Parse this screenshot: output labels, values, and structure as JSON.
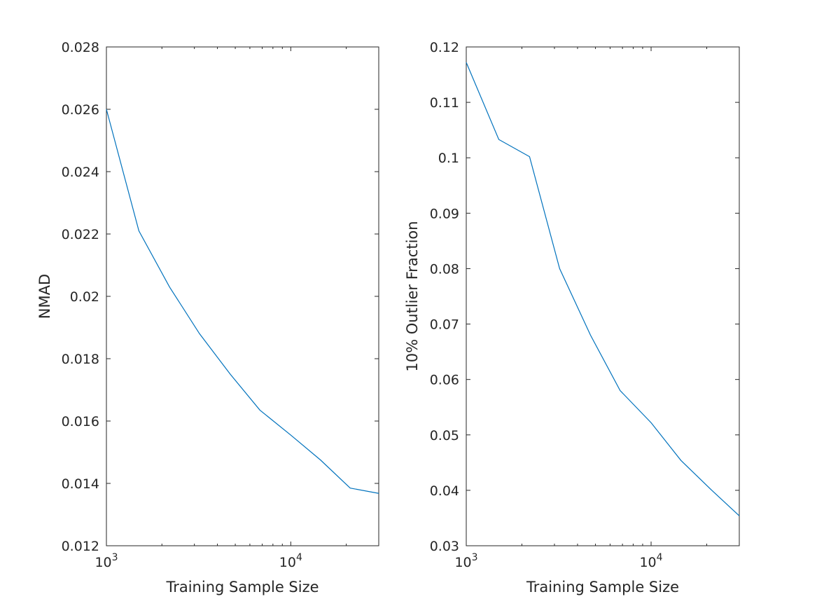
{
  "chart_data": [
    {
      "type": "line",
      "xlabel": "Training Sample Size",
      "ylabel": "NMAD",
      "xscale": "log",
      "xlim": [
        1000,
        30000
      ],
      "ylim": [
        0.012,
        0.028
      ],
      "yticks": [
        "0.012",
        "0.014",
        "0.016",
        "0.018",
        "0.02",
        "0.022",
        "0.024",
        "0.026",
        "0.028"
      ],
      "xticks": [
        {
          "base": "10",
          "exp": "3",
          "value": 1000
        },
        {
          "base": "10",
          "exp": "4",
          "value": 10000
        }
      ],
      "grid": false,
      "series": [
        {
          "color": "#0072bd",
          "x": [
            1000,
            1500,
            2200,
            3200,
            4700,
            6800,
            10000,
            14500,
            21000,
            30000
          ],
          "y": [
            0.026,
            0.0221,
            0.0203,
            0.0188,
            0.0175,
            0.01635,
            0.01555,
            0.01475,
            0.01385,
            0.01368
          ]
        }
      ]
    },
    {
      "type": "line",
      "xlabel": "Training Sample Size",
      "ylabel": "10% Outlier Fraction",
      "xscale": "log",
      "xlim": [
        1000,
        30000
      ],
      "ylim": [
        0.03,
        0.12
      ],
      "yticks": [
        "0.03",
        "0.04",
        "0.05",
        "0.06",
        "0.07",
        "0.08",
        "0.09",
        "0.1",
        "0.11",
        "0.12"
      ],
      "xticks": [
        {
          "base": "10",
          "exp": "3",
          "value": 1000
        },
        {
          "base": "10",
          "exp": "4",
          "value": 10000
        }
      ],
      "grid": false,
      "series": [
        {
          "color": "#0072bd",
          "x": [
            1000,
            1500,
            2200,
            3200,
            4700,
            6800,
            10000,
            14500,
            21000,
            30000
          ],
          "y": [
            0.1172,
            0.1033,
            0.1002,
            0.08,
            0.068,
            0.058,
            0.0522,
            0.0454,
            0.0402,
            0.0354
          ]
        }
      ]
    }
  ]
}
